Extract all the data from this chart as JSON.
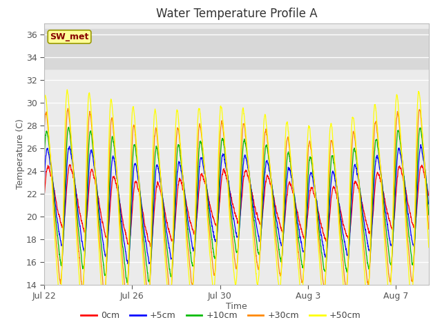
{
  "title": "Water Temperature Profile A",
  "xlabel": "Time",
  "ylabel": "Temperature (C)",
  "ylim": [
    14,
    37
  ],
  "yticks": [
    14,
    16,
    18,
    20,
    22,
    24,
    26,
    28,
    30,
    32,
    34,
    36
  ],
  "background_color": "#ffffff",
  "plot_bg_color": "#ebebeb",
  "grid_color": "#ffffff",
  "legend_label": "SW_met",
  "series": [
    {
      "label": "0cm",
      "color": "#ff0000",
      "amplitude": 2.5,
      "base": 21.0,
      "phase_shift": 0.0
    },
    {
      "label": "+5cm",
      "color": "#0000ff",
      "amplitude": 4.0,
      "base": 21.0,
      "phase_shift": 0.03
    },
    {
      "label": "+10cm",
      "color": "#00bb00",
      "amplitude": 5.5,
      "base": 21.0,
      "phase_shift": 0.06
    },
    {
      "label": "+30cm",
      "color": "#ff8800",
      "amplitude": 7.0,
      "base": 21.0,
      "phase_shift": 0.09
    },
    {
      "label": "+50cm",
      "color": "#ffff00",
      "amplitude": 8.5,
      "base": 21.0,
      "phase_shift": 0.12
    }
  ],
  "n_days": 17.5,
  "n_points": 4000,
  "xtick_days": [
    0,
    4,
    8,
    12,
    16
  ],
  "xtick_labels": [
    "Jul 22",
    "Jul 26",
    "Jul 30",
    "Aug 3",
    "Aug 7"
  ],
  "shaded_band_lo": 33.0,
  "shaded_band_hi": 36.5,
  "title_fontsize": 12,
  "axis_label_fontsize": 9,
  "tick_fontsize": 9,
  "legend_fontsize": 9,
  "linewidth": 0.9
}
